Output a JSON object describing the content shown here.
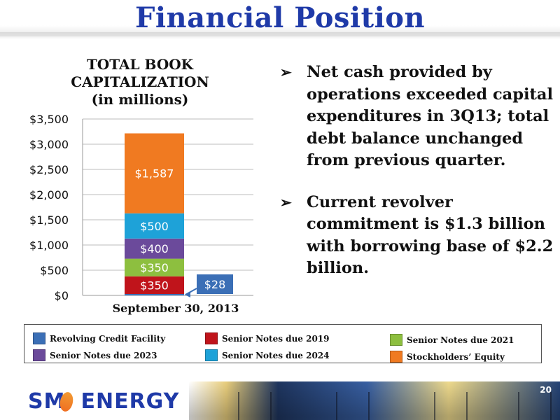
{
  "page": {
    "title": "Financial Position",
    "page_number": "20"
  },
  "chart_data": {
    "type": "bar",
    "stacked": true,
    "title_lines": [
      "TOTAL BOOK",
      "CAPITALIZATION",
      "(in millions)"
    ],
    "categories": [
      "September 30, 2013"
    ],
    "ylim": [
      0,
      3500
    ],
    "yticks": [
      "$0",
      "$500",
      "$1,000",
      "$1,500",
      "$2,000",
      "$2,500",
      "$3,000",
      "$3,500"
    ],
    "ytick_values": [
      0,
      500,
      1000,
      1500,
      2000,
      2500,
      3000,
      3500
    ],
    "grid": true,
    "series": [
      {
        "name": "Revolving Credit Facility",
        "value": 28,
        "label": "$28",
        "color": "#3b6fb6",
        "callout": true
      },
      {
        "name": "Senior Notes due 2019",
        "value": 350,
        "label": "$350",
        "color": "#c0141b"
      },
      {
        "name": "Senior Notes due 2021",
        "value": 350,
        "label": "$350",
        "color": "#8dbf3f"
      },
      {
        "name": "Senior Notes due 2023",
        "value": 400,
        "label": "$400",
        "color": "#6b4a9b"
      },
      {
        "name": "Senior Notes due 2024",
        "value": 500,
        "label": "$500",
        "color": "#1ea2d8"
      },
      {
        "name": "Stockholders’ Equity",
        "value": 1587,
        "label": "$1,587",
        "color": "#f07a21"
      }
    ]
  },
  "bullets": [
    "Net cash provided by operations exceeded capital expenditures in 3Q13; total debt balance unchanged from previous quarter.",
    "Current revolver commitment is $1.3 billion with borrowing base of $2.2 billion."
  ],
  "bullet_glyph": "➢",
  "legend": {
    "col1": [
      "Revolving Credit Facility",
      "Senior Notes due 2023"
    ],
    "col2": [
      "Senior Notes due 2019",
      "Senior Notes due 2024"
    ],
    "col3": [
      "Senior Notes due 2021",
      "Stockholders’ Equity"
    ]
  },
  "footer": {
    "logo_left": "SM",
    "logo_right": "ENERGY"
  }
}
